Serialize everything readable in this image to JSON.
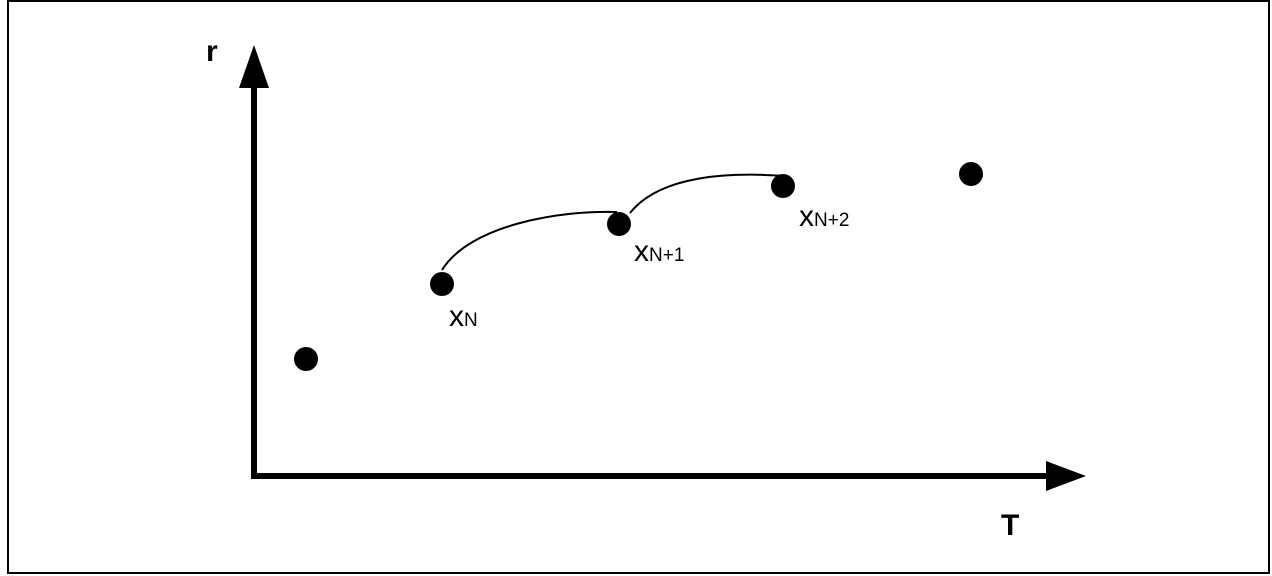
{
  "diagram": {
    "axes": {
      "x_label": "T",
      "y_label": "r"
    },
    "points": [
      {
        "id": "p0",
        "label": ""
      },
      {
        "id": "xn",
        "label": "x",
        "subscript": "N"
      },
      {
        "id": "xn1",
        "label": "x",
        "subscript": "N+1"
      },
      {
        "id": "xn2",
        "label": "x",
        "subscript": "N+2"
      },
      {
        "id": "p4",
        "label": ""
      }
    ],
    "arcs": [
      {
        "from": "xn",
        "to": "xn1"
      },
      {
        "from": "xn1",
        "to": "xn2"
      }
    ],
    "colors": {
      "stroke": "#000000",
      "background": "#ffffff"
    }
  }
}
